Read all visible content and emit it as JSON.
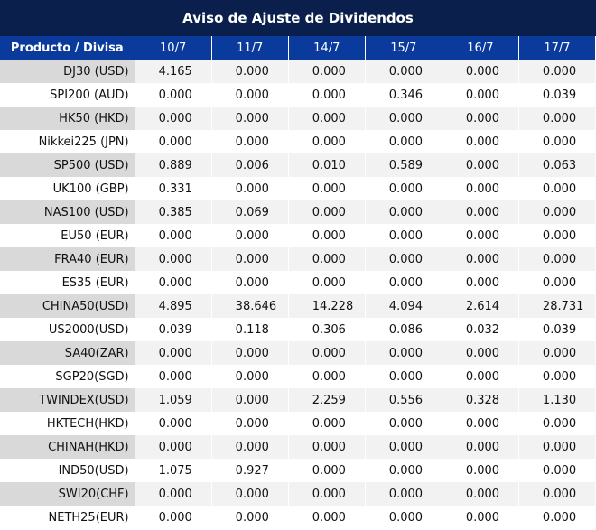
{
  "title": "Aviso de Ajuste de Dividendos",
  "colors": {
    "header_dark": "#0b1f4d",
    "header_blue": "#0a3a9c",
    "nonzero_value": "#e00000"
  },
  "headers": [
    "Producto / Divisa",
    "10/7",
    "11/7",
    "14/7",
    "15/7",
    "16/7",
    "17/7"
  ],
  "rows": [
    {
      "product": "DJ30 (USD)",
      "values": [
        "4.165",
        "0.000",
        "0.000",
        "0.000",
        "0.000",
        "0.000"
      ]
    },
    {
      "product": "SPI200 (AUD)",
      "values": [
        "0.000",
        "0.000",
        "0.000",
        "0.346",
        "0.000",
        "0.039"
      ]
    },
    {
      "product": "HK50 (HKD)",
      "values": [
        "0.000",
        "0.000",
        "0.000",
        "0.000",
        "0.000",
        "0.000"
      ]
    },
    {
      "product": "Nikkei225 (JPN)",
      "values": [
        "0.000",
        "0.000",
        "0.000",
        "0.000",
        "0.000",
        "0.000"
      ]
    },
    {
      "product": "SP500 (USD)",
      "values": [
        "0.889",
        "0.006",
        "0.010",
        "0.589",
        "0.000",
        "0.063"
      ]
    },
    {
      "product": "UK100 (GBP)",
      "values": [
        "0.331",
        "0.000",
        "0.000",
        "0.000",
        "0.000",
        "0.000"
      ]
    },
    {
      "product": "NAS100 (USD)",
      "values": [
        "0.385",
        "0.069",
        "0.000",
        "0.000",
        "0.000",
        "0.000"
      ]
    },
    {
      "product": "EU50 (EUR)",
      "values": [
        "0.000",
        "0.000",
        "0.000",
        "0.000",
        "0.000",
        "0.000"
      ]
    },
    {
      "product": "FRA40 (EUR)",
      "values": [
        "0.000",
        "0.000",
        "0.000",
        "0.000",
        "0.000",
        "0.000"
      ]
    },
    {
      "product": "ES35 (EUR)",
      "values": [
        "0.000",
        "0.000",
        "0.000",
        "0.000",
        "0.000",
        "0.000"
      ]
    },
    {
      "product": "CHINA50(USD)",
      "values": [
        "4.895",
        "38.646",
        "14.228",
        "4.094",
        "2.614",
        "28.731"
      ]
    },
    {
      "product": "US2000(USD)",
      "values": [
        "0.039",
        "0.118",
        "0.306",
        "0.086",
        "0.032",
        "0.039"
      ]
    },
    {
      "product": "SA40(ZAR)",
      "values": [
        "0.000",
        "0.000",
        "0.000",
        "0.000",
        "0.000",
        "0.000"
      ]
    },
    {
      "product": "SGP20(SGD)",
      "values": [
        "0.000",
        "0.000",
        "0.000",
        "0.000",
        "0.000",
        "0.000"
      ]
    },
    {
      "product": "TWINDEX(USD)",
      "values": [
        "1.059",
        "0.000",
        "2.259",
        "0.556",
        "0.328",
        "1.130"
      ]
    },
    {
      "product": "HKTECH(HKD)",
      "values": [
        "0.000",
        "0.000",
        "0.000",
        "0.000",
        "0.000",
        "0.000"
      ]
    },
    {
      "product": "CHINAH(HKD)",
      "values": [
        "0.000",
        "0.000",
        "0.000",
        "0.000",
        "0.000",
        "0.000"
      ]
    },
    {
      "product": "IND50(USD)",
      "values": [
        "1.075",
        "0.927",
        "0.000",
        "0.000",
        "0.000",
        "0.000"
      ]
    },
    {
      "product": "SWI20(CHF)",
      "values": [
        "0.000",
        "0.000",
        "0.000",
        "0.000",
        "0.000",
        "0.000"
      ]
    },
    {
      "product": "NETH25(EUR)",
      "values": [
        "0.000",
        "0.000",
        "0.000",
        "0.000",
        "0.000",
        "0.000"
      ]
    }
  ]
}
